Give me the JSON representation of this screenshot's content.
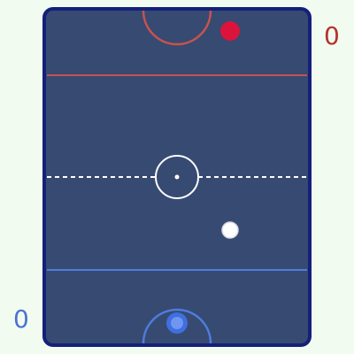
{
  "scores": {
    "opponent": "0",
    "player": "0"
  },
  "colors": {
    "background": "#f2fbf0",
    "rink_surface": "#374a72",
    "rink_border": "#15207a",
    "center_line": "#ffffff",
    "opponent_accent": "#c8534e",
    "opponent_score": "#b3332e",
    "opponent_mallet": "#dc143c",
    "player_accent": "#4f7ddf",
    "player_score": "#4a74d0",
    "player_mallet": "#5a86ea",
    "puck": "#ffffff"
  },
  "icons": {
    "opponent_mallet": "red-mallet",
    "player_mallet": "blue-mallet",
    "puck": "puck"
  },
  "state": {
    "puck_moving": true
  }
}
